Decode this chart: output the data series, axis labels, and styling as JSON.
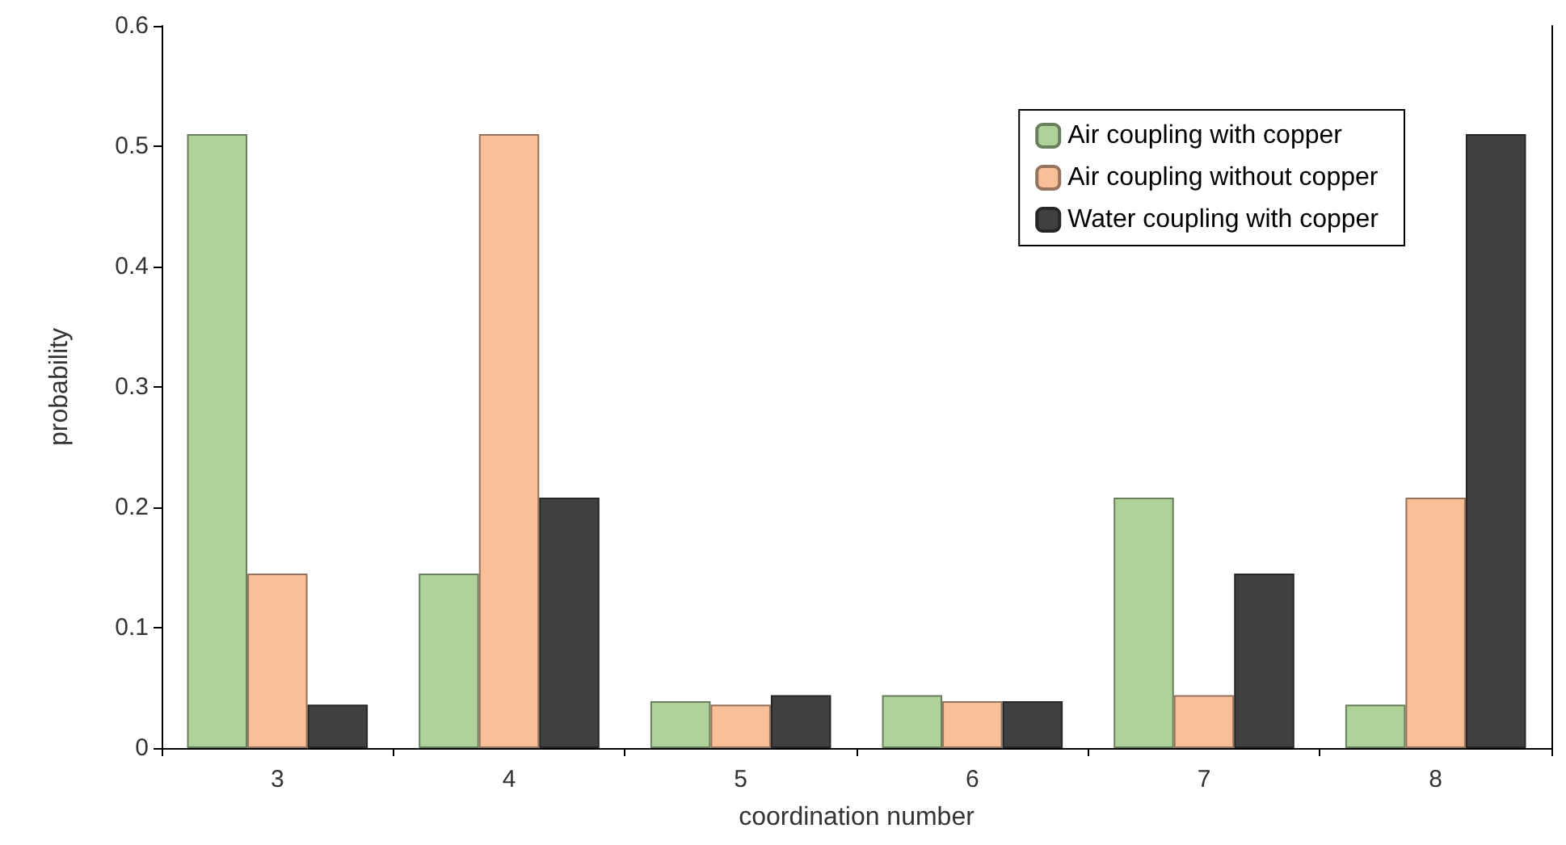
{
  "chart_data": {
    "type": "bar",
    "xlabel": "coordination number",
    "ylabel": "probability",
    "categories": [
      "3",
      "4",
      "5",
      "6",
      "7",
      "8"
    ],
    "series": [
      {
        "name": "Air coupling with copper",
        "color": "#afd29a",
        "values": [
          0.51,
          0.145,
          0.039,
          0.044,
          0.208,
          0.036
        ]
      },
      {
        "name": "Air coupling without copper",
        "color": "#f8bf99",
        "values": [
          0.145,
          0.51,
          0.036,
          0.039,
          0.044,
          0.208
        ]
      },
      {
        "name": "Water coupling with copper",
        "color": "#404040",
        "values": [
          0.036,
          0.208,
          0.044,
          0.039,
          0.145,
          0.51
        ]
      }
    ],
    "ylim": [
      0,
      0.6
    ],
    "yticks": [
      0,
      0.1,
      0.2,
      0.3,
      0.4,
      0.5,
      0.6
    ],
    "grid": false,
    "legend": "top right"
  }
}
